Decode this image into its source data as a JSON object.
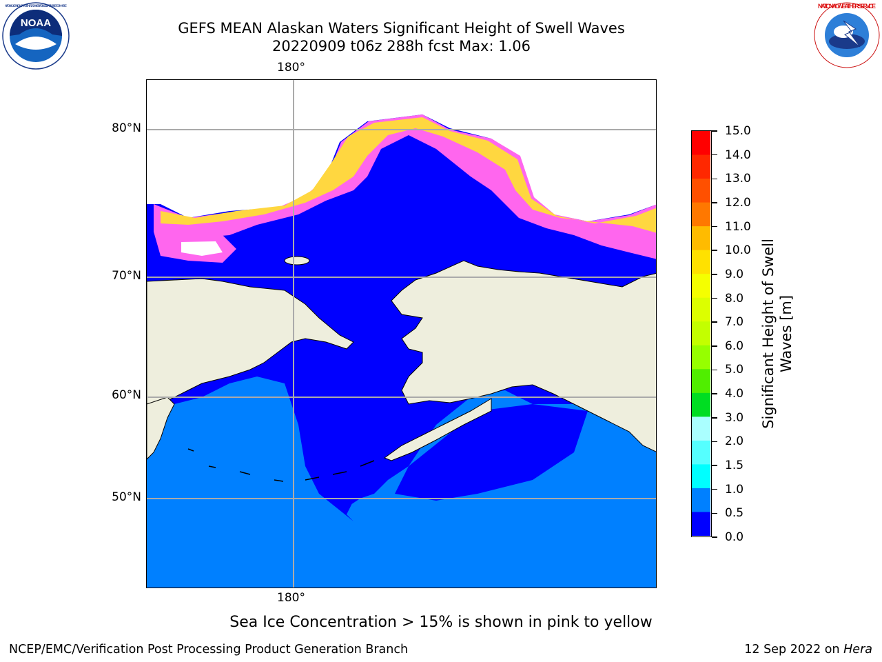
{
  "header": {
    "title_line1": "GEFS MEAN Alaskan Waters Significant Height of Swell Waves",
    "title_line2": "20220909 t06z 288h fcst   Max: 1.06",
    "left_logo": "NOAA",
    "left_logo_ring_text": "NATIONAL OCEANIC AND ATMOSPHERIC ADMINISTRATION · U.S. DEPARTMENT OF COMMERCE",
    "right_logo_ring_text": "NATIONAL WEATHER SERVICE"
  },
  "map": {
    "lat_labels": [
      "80°N",
      "70°N",
      "60°N",
      "50°N"
    ],
    "lon_label_top": "180°",
    "lon_label_bottom": "180°",
    "colors": {
      "ocean_0_0_5": "#0000ff",
      "ocean_0_5_1_0": "#0080ff",
      "land": "#eeeedd",
      "sea_ice_low": "#ff66ee",
      "sea_ice_high": "#ffd740",
      "grid": "#aaaaaa"
    }
  },
  "colorbar": {
    "title_line1": "Significant Height of Swell",
    "title_line2": "Waves [m]",
    "ticks": [
      "15.0",
      "14.0",
      "13.0",
      "12.0",
      "11.0",
      "10.0",
      "9.0",
      "8.0",
      "7.0",
      "6.0",
      "5.0",
      "4.0",
      "3.0",
      "2.0",
      "1.5",
      "1.0",
      "0.5",
      "0.0"
    ],
    "colors_top_to_bottom": [
      "#ff0000",
      "#ff2800",
      "#ff5000",
      "#ff7800",
      "#ff9900",
      "#ffbb00",
      "#ffe100",
      "#f5ff00",
      "#dcff00",
      "#c3ff00",
      "#96ff00",
      "#50ee00",
      "#00dd22",
      "#55ff88",
      "#aaffff",
      "#55ffff",
      "#00ffff",
      "#0080ff",
      "#0000ff"
    ]
  },
  "footer": {
    "ice_note": "Sea Ice Concentration > 15% is shown in pink to yellow",
    "left": "NCEP/EMC/Verification Post Processing Product Generation Branch",
    "right_date": "12 Sep 2022 on ",
    "right_host": "Hera"
  }
}
